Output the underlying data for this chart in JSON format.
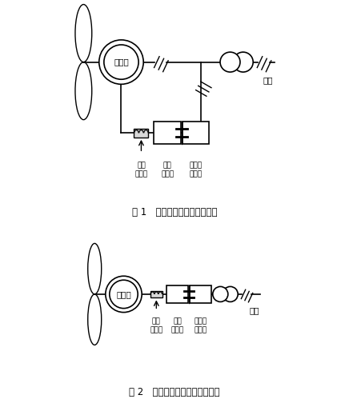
{
  "title1": "图 1   双馈机组机侧滤波器范围",
  "title2": "图 2   全功率机组机侧滤波器范围",
  "label_ji_ce_lv": "机侧\n滤波器",
  "label_ji_ce_bian": "机侧\n变流器",
  "label_wang_ce_bian": "电网侧\n变流器",
  "label_fa_dian_ji": "发电机",
  "label_dian_wang": "电网",
  "bg_color": "#ffffff",
  "line_color": "#000000"
}
